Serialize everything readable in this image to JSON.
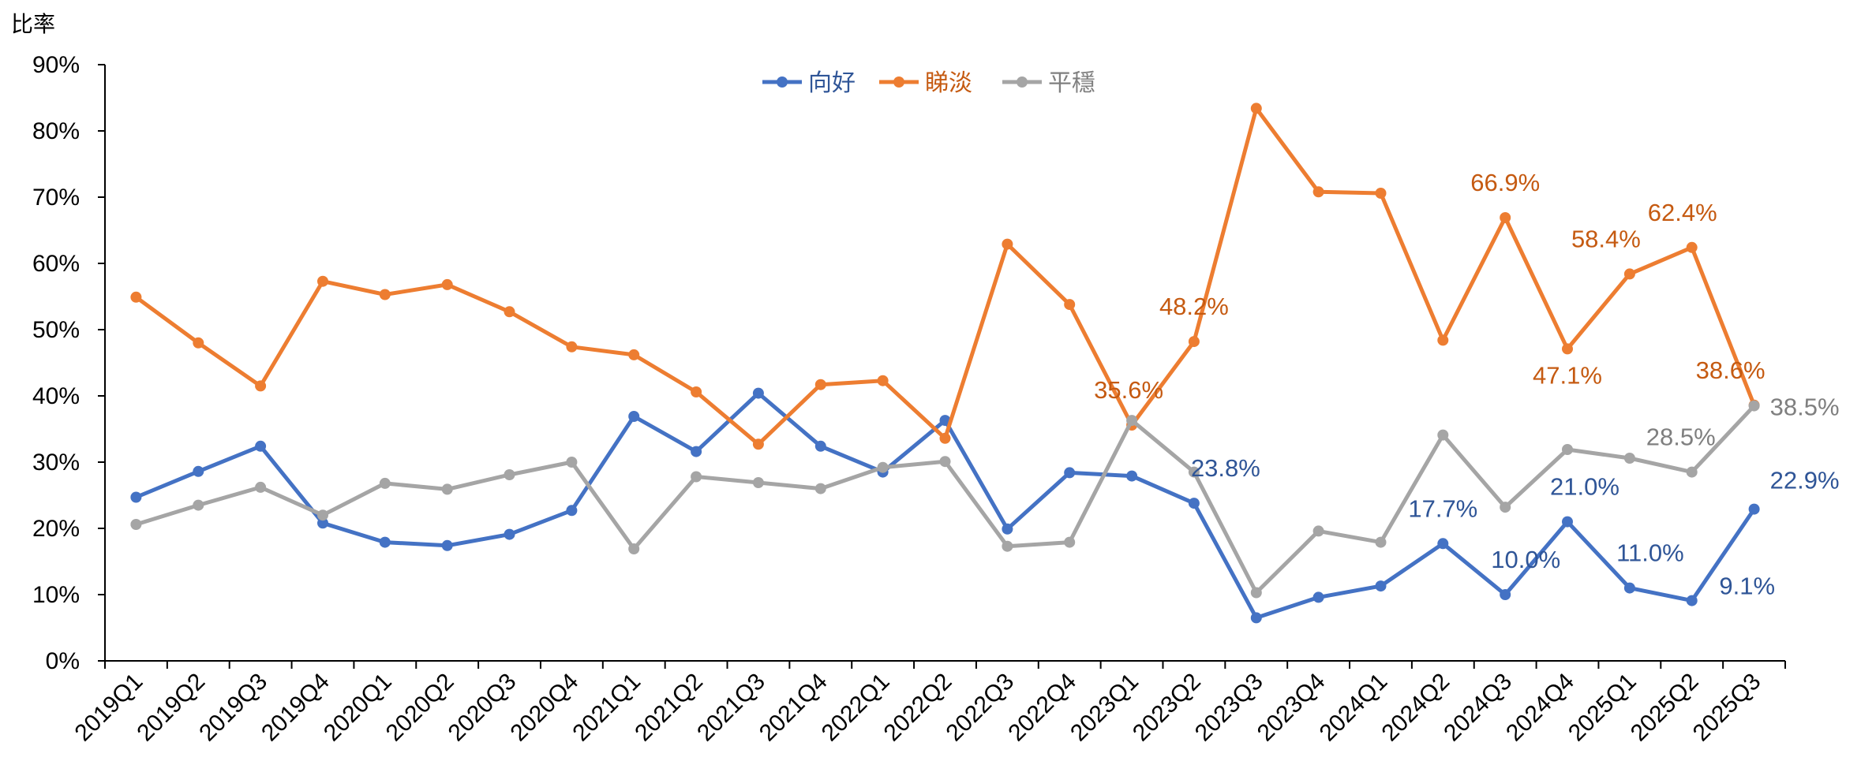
{
  "chart_data": {
    "type": "line",
    "ylabel": "比率",
    "xlabel": "",
    "ylim": [
      0,
      90
    ],
    "yticks": [
      "0%",
      "10%",
      "20%",
      "30%",
      "40%",
      "50%",
      "60%",
      "70%",
      "80%",
      "90%"
    ],
    "legend_position": "top-center",
    "categories": [
      "2019Q1",
      "2019Q2",
      "2019Q3",
      "2019Q4",
      "2020Q1",
      "2020Q2",
      "2020Q3",
      "2020Q4",
      "2021Q1",
      "2021Q2",
      "2021Q3",
      "2021Q4",
      "2022Q1",
      "2022Q2",
      "2022Q3",
      "2022Q4",
      "2023Q1",
      "2023Q2",
      "2023Q3",
      "2023Q4",
      "2024Q1",
      "2024Q2",
      "2024Q3",
      "2024Q4",
      "2025Q1",
      "2025Q2",
      "2025Q3"
    ],
    "series": [
      {
        "name": "向好",
        "color": "#4472C4",
        "label_color": "#2F5597",
        "values": [
          24.7,
          28.6,
          32.4,
          20.8,
          17.9,
          17.4,
          19.1,
          22.7,
          36.9,
          31.6,
          40.4,
          32.4,
          28.5,
          36.3,
          19.9,
          28.4,
          27.9,
          23.8,
          6.5,
          9.6,
          11.3,
          17.7,
          10.0,
          21.0,
          11.0,
          9.1,
          22.9
        ],
        "data_labels": [
          {
            "index": 17,
            "text": "23.8%"
          },
          {
            "index": 21,
            "text": "17.7%"
          },
          {
            "index": 22,
            "text": "10.0%"
          },
          {
            "index": 23,
            "text": "21.0%"
          },
          {
            "index": 24,
            "text": "11.0%"
          },
          {
            "index": 25,
            "text": "9.1%"
          },
          {
            "index": 26,
            "text": "22.9%"
          }
        ]
      },
      {
        "name": "睇淡",
        "color": "#ED7D31",
        "label_color": "#C55A11",
        "values": [
          54.9,
          48.0,
          41.5,
          57.3,
          55.3,
          56.8,
          52.7,
          47.4,
          46.2,
          40.6,
          32.7,
          41.7,
          42.3,
          33.6,
          62.9,
          53.8,
          35.6,
          48.2,
          83.4,
          70.8,
          70.6,
          48.4,
          66.9,
          47.1,
          58.4,
          62.4,
          38.6
        ],
        "data_labels": [
          {
            "index": 16,
            "text": "35.6%"
          },
          {
            "index": 17,
            "text": "48.2%"
          },
          {
            "index": 22,
            "text": "66.9%"
          },
          {
            "index": 23,
            "text": "47.1%"
          },
          {
            "index": 24,
            "text": "58.4%"
          },
          {
            "index": 25,
            "text": "62.4%"
          },
          {
            "index": 26,
            "text": "38.6%"
          }
        ]
      },
      {
        "name": "平穩",
        "color": "#A5A5A5",
        "label_color": "#7F7F7F",
        "values": [
          20.6,
          23.5,
          26.2,
          22.0,
          26.8,
          25.9,
          28.1,
          30.0,
          16.9,
          27.8,
          26.9,
          26.0,
          29.2,
          30.1,
          17.3,
          17.9,
          36.3,
          28.5,
          10.3,
          19.6,
          17.9,
          34.1,
          23.2,
          31.9,
          30.6,
          28.5,
          38.5
        ],
        "data_labels": [
          {
            "index": 25,
            "text": "28.5%"
          },
          {
            "index": 26,
            "text": "38.5%"
          }
        ]
      }
    ]
  }
}
